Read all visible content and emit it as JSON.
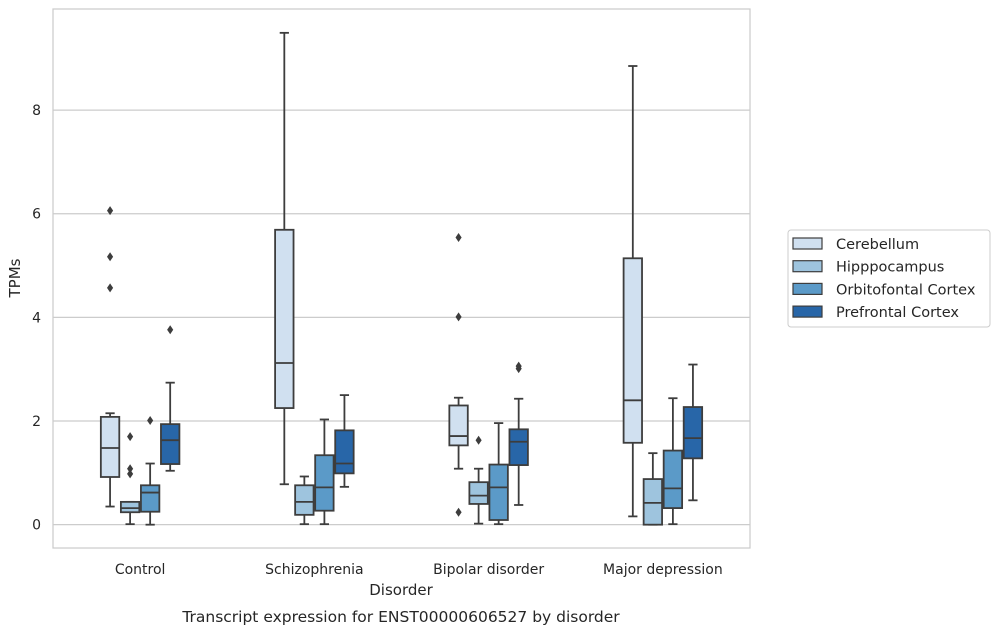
{
  "chart_data": {
    "type": "box",
    "title": "",
    "caption": "Transcript expression for ENST00000606527 by disorder",
    "xlabel": "Disorder",
    "ylabel": "TPMs",
    "ylim": [
      -0.45,
      9.95
    ],
    "yticks": [
      "0",
      "2",
      "4",
      "6",
      "8"
    ],
    "ytick_values": [
      0,
      2,
      4,
      6,
      8
    ],
    "grid": "horizontal",
    "legend_placement": "center-right outside",
    "categories": [
      "Control",
      "Schizophrenia",
      "Bipolar disorder",
      "Major depression"
    ],
    "series": [
      {
        "name": "Cerebellum",
        "color": "#d0e0f0",
        "boxes": [
          {
            "min": 0.35,
            "q1": 0.92,
            "median": 1.48,
            "q3": 2.08,
            "max": 2.15,
            "outliers": [
              4.57,
              5.17,
              6.06
            ]
          },
          {
            "min": 0.78,
            "q1": 2.25,
            "median": 3.12,
            "q3": 5.69,
            "max": 9.49,
            "outliers": []
          },
          {
            "min": 1.08,
            "q1": 1.53,
            "median": 1.71,
            "q3": 2.3,
            "max": 2.45,
            "outliers": [
              0.24,
              4.01,
              5.54
            ]
          },
          {
            "min": 0.16,
            "q1": 1.58,
            "median": 2.4,
            "q3": 5.14,
            "max": 8.85,
            "outliers": []
          }
        ]
      },
      {
        "name": "Hipppocampus",
        "color": "#9ec4de",
        "boxes": [
          {
            "min": 0.01,
            "q1": 0.24,
            "median": 0.32,
            "q3": 0.44,
            "max": 0.44,
            "outliers": [
              0.98,
              1.08,
              1.7
            ]
          },
          {
            "min": 0.01,
            "q1": 0.19,
            "median": 0.44,
            "q3": 0.76,
            "max": 0.93,
            "outliers": []
          },
          {
            "min": 0.02,
            "q1": 0.4,
            "median": 0.56,
            "q3": 0.82,
            "max": 1.08,
            "outliers": [
              1.63
            ]
          },
          {
            "min": 0.0,
            "q1": 0.0,
            "median": 0.42,
            "q3": 0.88,
            "max": 1.38,
            "outliers": []
          }
        ]
      },
      {
        "name": "Orbitofontal Cortex",
        "color": "#5b9ac8",
        "boxes": [
          {
            "min": 0.0,
            "q1": 0.25,
            "median": 0.62,
            "q3": 0.76,
            "max": 1.18,
            "outliers": [
              2.01
            ]
          },
          {
            "min": 0.01,
            "q1": 0.27,
            "median": 0.72,
            "q3": 1.34,
            "max": 2.03,
            "outliers": []
          },
          {
            "min": 0.01,
            "q1": 0.09,
            "median": 0.72,
            "q3": 1.16,
            "max": 1.96,
            "outliers": []
          },
          {
            "min": 0.01,
            "q1": 0.32,
            "median": 0.7,
            "q3": 1.43,
            "max": 2.44,
            "outliers": []
          }
        ]
      },
      {
        "name": "Prefrontal Cortex",
        "color": "#2866a8",
        "boxes": [
          {
            "min": 1.04,
            "q1": 1.17,
            "median": 1.63,
            "q3": 1.94,
            "max": 2.74,
            "outliers": [
              3.76
            ]
          },
          {
            "min": 0.73,
            "q1": 0.99,
            "median": 1.18,
            "q3": 1.82,
            "max": 2.5,
            "outliers": []
          },
          {
            "min": 0.38,
            "q1": 1.15,
            "median": 1.6,
            "q3": 1.84,
            "max": 2.43,
            "outliers": [
              3.01,
              3.06
            ]
          },
          {
            "min": 0.47,
            "q1": 1.28,
            "median": 1.67,
            "q3": 2.27,
            "max": 3.09,
            "outliers": []
          }
        ]
      }
    ]
  }
}
